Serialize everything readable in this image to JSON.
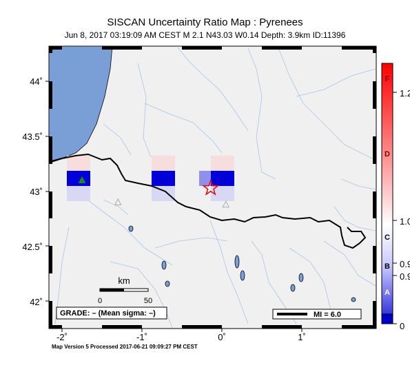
{
  "title": "SISCAN Uncertainty Ratio Map : Pyrenees",
  "subtitle": "Jun  8, 2017 03:19:09 AM CEST   M 2.1   N43.03 W0.14   Depth: 3.9km   ID:11396",
  "footer": "Map Version 5 Processed 2017-06-21 09:09:27 PM CEST",
  "map": {
    "lon_ticks": [
      {
        "value": -2,
        "label": "-2˚"
      },
      {
        "value": -1,
        "label": "-1˚"
      },
      {
        "value": 0,
        "label": "0˚"
      },
      {
        "value": 1,
        "label": "1˚"
      }
    ],
    "lat_ticks": [
      {
        "value": 44,
        "label": "44˚"
      },
      {
        "value": 43.5,
        "label": "43.5˚"
      },
      {
        "value": 43,
        "label": "43˚"
      },
      {
        "value": 42.5,
        "label": "42.5˚"
      },
      {
        "value": 42,
        "label": "42˚"
      }
    ],
    "lon_range": [
      -2.2,
      1.9
    ],
    "lat_range": [
      41.8,
      44.4
    ],
    "epicenter": {
      "lat": 43.03,
      "lon": -0.14
    },
    "stations": [
      {
        "lat": 43.1,
        "lon": -1.75,
        "color": "#1a8a1a"
      },
      {
        "lat": 42.9,
        "lon": -1.3,
        "color": "#aaaaaa"
      },
      {
        "lat": 42.88,
        "lon": 0.05,
        "color": "#aaaaaa"
      }
    ]
  },
  "scale": {
    "label": "km",
    "start": "0",
    "end": "50"
  },
  "grade_box": {
    "text": "GRADE: – (Mean sigma: –)"
  },
  "mi_box": {
    "text": "MI = 6.0"
  },
  "colorbar": {
    "tick_labels": [
      "1.2",
      "1.0",
      "0.9",
      "0.9",
      "0"
    ],
    "grade_letters": [
      "F",
      "D",
      "C",
      "B",
      "A"
    ],
    "colors": {
      "top": "#ff0000",
      "mid": "#ffffff",
      "bottom": "#0000cc"
    }
  }
}
